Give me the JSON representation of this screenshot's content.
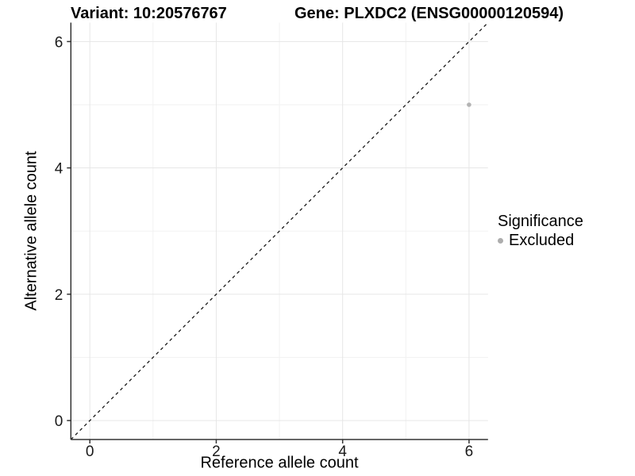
{
  "header": {
    "variant_title": "Variant: 10:20576767",
    "gene_title": "Gene: PLXDC2 (ENSG00000120594)"
  },
  "chart_data": {
    "type": "scatter",
    "xlabel": "Reference allele count",
    "ylabel": "Alternative allele count",
    "xlim": [
      -0.3,
      6.3
    ],
    "ylim": [
      -0.3,
      6.3
    ],
    "x_ticks": [
      0,
      2,
      4,
      6
    ],
    "y_ticks": [
      0,
      2,
      4,
      6
    ],
    "x_tick_labels": [
      "0",
      "2",
      "4",
      "6"
    ],
    "y_tick_labels": [
      "0",
      "2",
      "4",
      "6"
    ],
    "x_minor_ticks": [
      1,
      3,
      5
    ],
    "y_minor_ticks": [
      1,
      3,
      5
    ],
    "grid": true,
    "reference_line": {
      "slope": 1,
      "intercept": 0,
      "style": "dashed"
    },
    "series": [
      {
        "name": "Excluded",
        "points": [
          {
            "x": 6,
            "y": 5
          }
        ]
      }
    ],
    "legend": {
      "title": "Significance",
      "position": "right",
      "entries": [
        {
          "label": "Excluded",
          "color": "#adadad"
        }
      ]
    }
  },
  "colors": {
    "background": "#ffffff",
    "grid_major": "#e6e6e6",
    "grid_minor": "#f2f2f2",
    "axis_line": "#333333",
    "tick_mark": "#333333",
    "tick_text": "#1a1a1a",
    "dashed_line": "#1a1a1a",
    "point": "#b3b3b3"
  }
}
